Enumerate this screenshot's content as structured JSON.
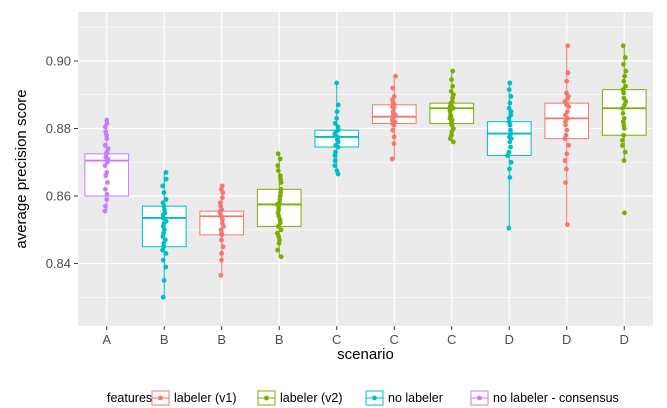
{
  "chart_data": {
    "type": "box",
    "xlabel": "scenario",
    "ylabel": "average precision score",
    "ylim": [
      0.8215,
      0.9145
    ],
    "yticks": [
      0.84,
      0.86,
      0.88,
      0.9
    ],
    "ytick_labels": [
      "0.84",
      "0.86",
      "0.88",
      "0.90"
    ],
    "grid": true,
    "panel_background": "#ebebeb",
    "legend": {
      "title": "features",
      "placement": "bottom",
      "entries": [
        {
          "label": "labeler (v1)",
          "color": "#F8766D"
        },
        {
          "label": "labeler (v2)",
          "color": "#7CAE00"
        },
        {
          "label": "no labeler",
          "color": "#00BFC4"
        },
        {
          "label": "no labeler - consensus",
          "color": "#C77CFF"
        }
      ]
    },
    "boxes": [
      {
        "scenario": "A",
        "feature": "no labeler - consensus",
        "color": "#C77CFF",
        "min": 0.8555,
        "q1": 0.86,
        "median": 0.8705,
        "q3": 0.8725,
        "max": 0.8825,
        "points": [
          0.8825,
          0.8815,
          0.8805,
          0.879,
          0.878,
          0.877,
          0.875,
          0.874,
          0.873,
          0.8725,
          0.8715,
          0.871,
          0.87,
          0.869,
          0.867,
          0.866,
          0.864,
          0.862,
          0.8605,
          0.859,
          0.857,
          0.8555
        ]
      },
      {
        "scenario": "B",
        "feature": "no labeler",
        "color": "#00BFC4",
        "min": 0.83,
        "q1": 0.845,
        "median": 0.8535,
        "q3": 0.857,
        "max": 0.867,
        "points": [
          0.867,
          0.865,
          0.863,
          0.861,
          0.859,
          0.858,
          0.857,
          0.856,
          0.855,
          0.8545,
          0.8535,
          0.8525,
          0.852,
          0.851,
          0.85,
          0.849,
          0.848,
          0.847,
          0.846,
          0.845,
          0.844,
          0.843,
          0.841,
          0.839,
          0.835,
          0.83
        ]
      },
      {
        "scenario": "B",
        "feature": "labeler (v1)",
        "color": "#F8766D",
        "min": 0.8365,
        "q1": 0.8485,
        "median": 0.854,
        "q3": 0.8555,
        "max": 0.863,
        "points": [
          0.863,
          0.862,
          0.861,
          0.8595,
          0.858,
          0.857,
          0.856,
          0.8555,
          0.855,
          0.854,
          0.853,
          0.852,
          0.851,
          0.85,
          0.849,
          0.8485,
          0.847,
          0.845,
          0.843,
          0.841,
          0.8365
        ]
      },
      {
        "scenario": "B",
        "feature": "labeler (v2)",
        "color": "#7CAE00",
        "min": 0.842,
        "q1": 0.851,
        "median": 0.8575,
        "q3": 0.862,
        "max": 0.8725,
        "points": [
          0.8725,
          0.871,
          0.869,
          0.8675,
          0.866,
          0.865,
          0.864,
          0.862,
          0.861,
          0.86,
          0.859,
          0.858,
          0.8575,
          0.857,
          0.856,
          0.855,
          0.854,
          0.853,
          0.852,
          0.851,
          0.85,
          0.849,
          0.848,
          0.847,
          0.846,
          0.844,
          0.842
        ]
      },
      {
        "scenario": "C",
        "feature": "no labeler",
        "color": "#00BFC4",
        "min": 0.8665,
        "q1": 0.8745,
        "median": 0.8775,
        "q3": 0.8795,
        "max": 0.8935,
        "points": [
          0.8935,
          0.887,
          0.885,
          0.883,
          0.8815,
          0.8805,
          0.8795,
          0.879,
          0.8785,
          0.878,
          0.8775,
          0.877,
          0.8765,
          0.876,
          0.875,
          0.8745,
          0.873,
          0.872,
          0.8705,
          0.869,
          0.8675,
          0.8665
        ]
      },
      {
        "scenario": "C",
        "feature": "labeler (v1)",
        "color": "#F8766D",
        "min": 0.871,
        "q1": 0.8815,
        "median": 0.8835,
        "q3": 0.887,
        "max": 0.8955,
        "points": [
          0.8955,
          0.892,
          0.8895,
          0.8885,
          0.8875,
          0.887,
          0.8865,
          0.886,
          0.885,
          0.8845,
          0.884,
          0.8835,
          0.883,
          0.8825,
          0.882,
          0.8815,
          0.881,
          0.8795,
          0.8775,
          0.8755,
          0.871
        ]
      },
      {
        "scenario": "C",
        "feature": "labeler (v2)",
        "color": "#7CAE00",
        "min": 0.876,
        "q1": 0.8815,
        "median": 0.886,
        "q3": 0.8875,
        "max": 0.897,
        "points": [
          0.897,
          0.8945,
          0.8925,
          0.891,
          0.89,
          0.889,
          0.888,
          0.8875,
          0.887,
          0.8865,
          0.886,
          0.8855,
          0.885,
          0.884,
          0.8835,
          0.883,
          0.8825,
          0.882,
          0.8815,
          0.881,
          0.88,
          0.879,
          0.878,
          0.877,
          0.876
        ]
      },
      {
        "scenario": "D",
        "feature": "no labeler",
        "color": "#00BFC4",
        "min": 0.8505,
        "q1": 0.872,
        "median": 0.8785,
        "q3": 0.882,
        "max": 0.8935,
        "points": [
          0.8935,
          0.8915,
          0.8895,
          0.8875,
          0.886,
          0.885,
          0.884,
          0.883,
          0.882,
          0.881,
          0.8795,
          0.8785,
          0.8775,
          0.877,
          0.876,
          0.8745,
          0.873,
          0.872,
          0.87,
          0.868,
          0.8655,
          0.8505
        ]
      },
      {
        "scenario": "D",
        "feature": "labeler (v1)",
        "color": "#F8766D",
        "min": 0.8515,
        "q1": 0.877,
        "median": 0.883,
        "q3": 0.8875,
        "max": 0.9045,
        "points": [
          0.9045,
          0.8965,
          0.894,
          0.8905,
          0.8895,
          0.889,
          0.888,
          0.8875,
          0.887,
          0.8865,
          0.885,
          0.884,
          0.883,
          0.882,
          0.881,
          0.8795,
          0.878,
          0.877,
          0.875,
          0.8725,
          0.8705,
          0.868,
          0.864,
          0.8515
        ]
      },
      {
        "scenario": "D",
        "feature": "labeler (v2)",
        "color": "#7CAE00",
        "min": 0.8705,
        "q1": 0.878,
        "median": 0.886,
        "q3": 0.8915,
        "max": 0.9045,
        "points": [
          0.9045,
          0.901,
          0.899,
          0.897,
          0.8955,
          0.894,
          0.8925,
          0.8915,
          0.8905,
          0.889,
          0.888,
          0.887,
          0.886,
          0.8845,
          0.883,
          0.882,
          0.881,
          0.88,
          0.878,
          0.8765,
          0.875,
          0.873,
          0.8705,
          0.855
        ]
      }
    ]
  }
}
